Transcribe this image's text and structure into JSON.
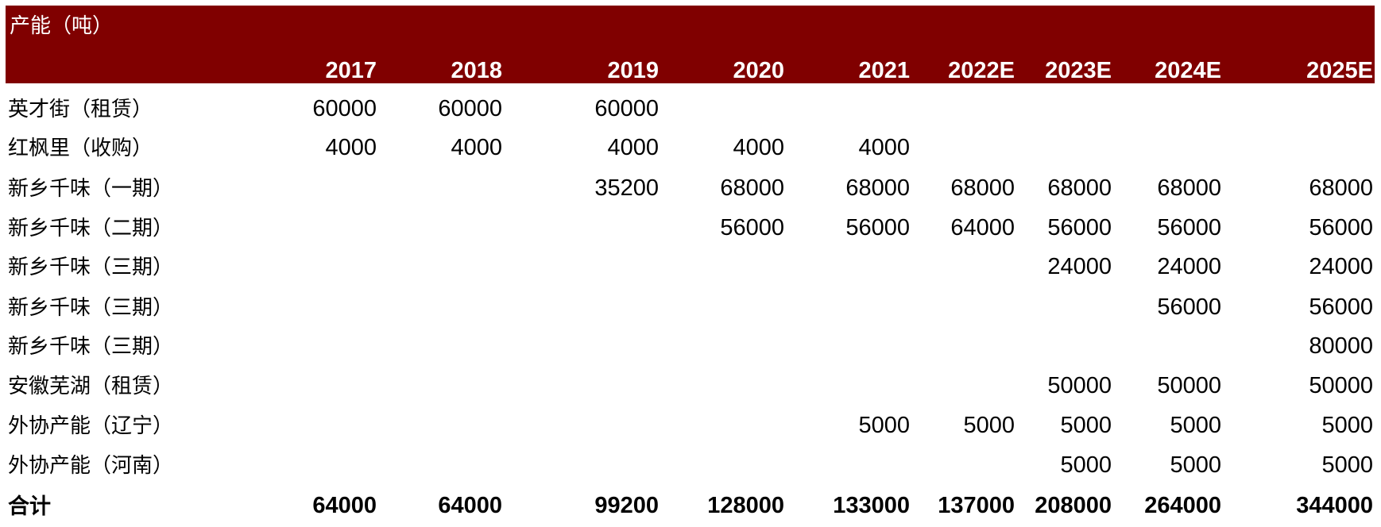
{
  "table": {
    "title": "产能（吨）",
    "years": [
      "2017",
      "2018",
      "2019",
      "2020",
      "2021",
      "2022E",
      "2023E",
      "2024E",
      "2025E"
    ],
    "rows": [
      {
        "label": "英才街（租赁）",
        "values": [
          "60000",
          "60000",
          "60000",
          "",
          "",
          "",
          "",
          "",
          ""
        ]
      },
      {
        "label": "红枫里（收购）",
        "values": [
          "4000",
          "4000",
          "4000",
          "4000",
          "4000",
          "",
          "",
          "",
          ""
        ]
      },
      {
        "label": "新乡千味（一期）",
        "values": [
          "",
          "",
          "35200",
          "68000",
          "68000",
          "68000",
          "68000",
          "68000",
          "68000"
        ]
      },
      {
        "label": "新乡千味（二期）",
        "values": [
          "",
          "",
          "",
          "56000",
          "56000",
          "64000",
          "56000",
          "56000",
          "56000"
        ]
      },
      {
        "label": "新乡千味（三期）",
        "values": [
          "",
          "",
          "",
          "",
          "",
          "",
          "24000",
          "24000",
          "24000"
        ]
      },
      {
        "label": "新乡千味（三期）",
        "values": [
          "",
          "",
          "",
          "",
          "",
          "",
          "",
          "56000",
          "56000"
        ]
      },
      {
        "label": "新乡千味（三期）",
        "values": [
          "",
          "",
          "",
          "",
          "",
          "",
          "",
          "",
          "80000"
        ]
      },
      {
        "label": "安徽芜湖（租赁）",
        "values": [
          "",
          "",
          "",
          "",
          "",
          "",
          "50000",
          "50000",
          "50000"
        ]
      },
      {
        "label": "外协产能（辽宁）",
        "values": [
          "",
          "",
          "",
          "",
          "5000",
          "5000",
          "5000",
          "5000",
          "5000"
        ]
      },
      {
        "label": "外协产能（河南）",
        "values": [
          "",
          "",
          "",
          "",
          "",
          "",
          "5000",
          "5000",
          "5000"
        ]
      }
    ],
    "total": {
      "label": "合计",
      "values": [
        "64000",
        "64000",
        "99200",
        "128000",
        "133000",
        "137000",
        "208000",
        "264000",
        "344000"
      ]
    }
  },
  "colors": {
    "header_background": "#800000",
    "header_text": "#ffffff"
  }
}
